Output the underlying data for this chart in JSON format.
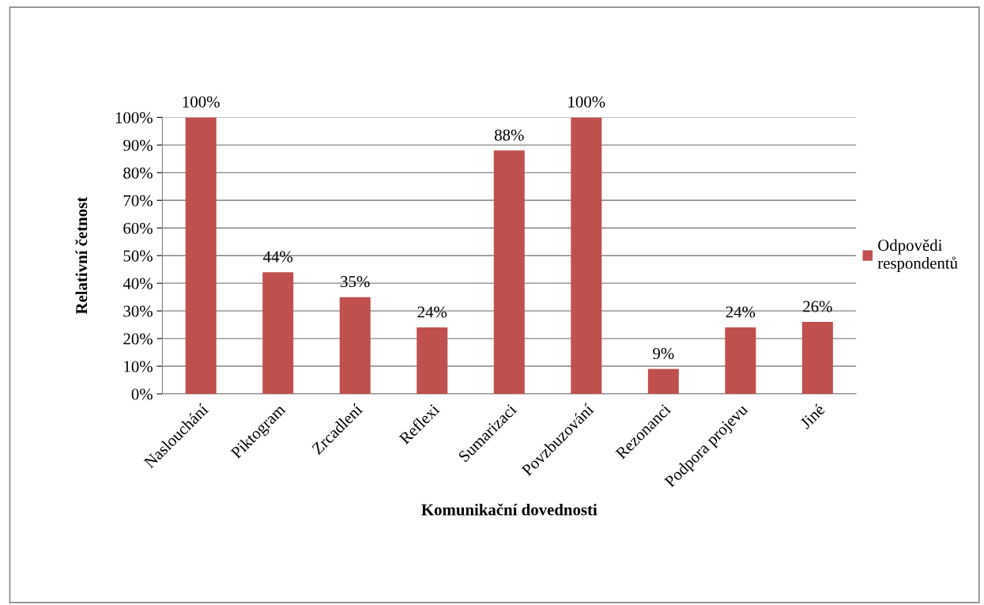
{
  "chart_data": {
    "type": "bar",
    "xlabel": "Komunikační dovednosti",
    "ylabel": "Relativní četnost",
    "categories": [
      "Naslouchání",
      "Piktogram",
      "Zrcadlení",
      "Reflexi",
      "Sumarizaci",
      "Povzbuzování",
      "Rezonanci",
      "Podpora projevu",
      "Jiné"
    ],
    "series": [
      {
        "name": "Odpovědi\nrespondentů",
        "color": "#c0504d",
        "values": [
          100,
          44,
          35,
          24,
          88,
          100,
          9,
          24,
          26
        ]
      }
    ],
    "ylim": [
      0,
      100
    ],
    "yticks": [
      {
        "value": 0,
        "label": "0%"
      },
      {
        "value": 10,
        "label": "10%"
      },
      {
        "value": 20,
        "label": "20%"
      },
      {
        "value": 30,
        "label": "30%"
      },
      {
        "value": 40,
        "label": "40%"
      },
      {
        "value": 50,
        "label": "50%"
      },
      {
        "value": 60,
        "label": "60%"
      },
      {
        "value": 70,
        "label": "70%"
      },
      {
        "value": 80,
        "label": "80%"
      },
      {
        "value": 90,
        "label": "90%"
      },
      {
        "value": 100,
        "label": "100%"
      }
    ],
    "value_labels": [
      "100%",
      "44%",
      "35%",
      "24%",
      "88%",
      "100%",
      "9%",
      "24%",
      "26%"
    ],
    "grid": "y",
    "legend": "right"
  }
}
